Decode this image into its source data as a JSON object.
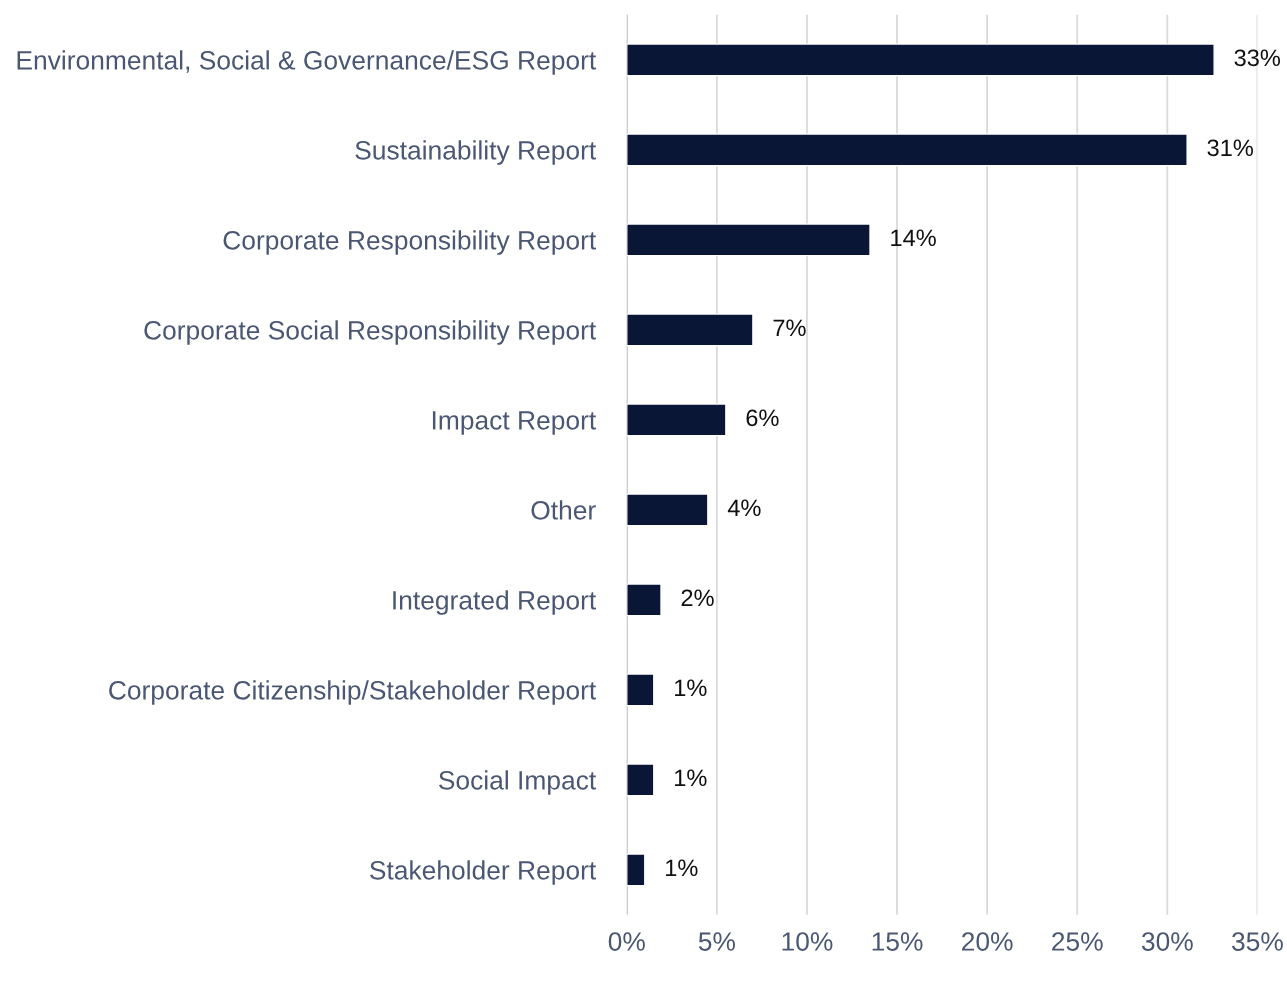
{
  "chart_data": {
    "type": "bar",
    "orientation": "horizontal",
    "categories": [
      "Environmental, Social & Governance/ESG Report",
      "Sustainability Report",
      "Corporate Responsibility Report",
      "Corporate Social Responsibility Report",
      "Impact Report",
      "Other",
      "Integrated Report",
      "Corporate Citizenship/Stakeholder Report",
      "Social Impact",
      "Stakeholder Report"
    ],
    "values": [
      32.6,
      31.1,
      13.5,
      7.0,
      5.5,
      4.5,
      1.9,
      1.5,
      1.5,
      1.0
    ],
    "value_labels": [
      "33%",
      "31%",
      "14%",
      "7%",
      "6%",
      "4%",
      "2%",
      "1%",
      "1%",
      "1%"
    ],
    "color": "#0a1636",
    "xlim": [
      0,
      35
    ],
    "xticks": [
      {
        "value": 0,
        "label": "0%"
      },
      {
        "value": 5,
        "label": "5%"
      },
      {
        "value": 10,
        "label": "10%"
      },
      {
        "value": 15,
        "label": "15%"
      },
      {
        "value": 20,
        "label": "20%"
      },
      {
        "value": 25,
        "label": "25%"
      },
      {
        "value": 30,
        "label": "30%"
      },
      {
        "value": 35,
        "label": "35%"
      }
    ],
    "grid": "x",
    "legend": false
  }
}
